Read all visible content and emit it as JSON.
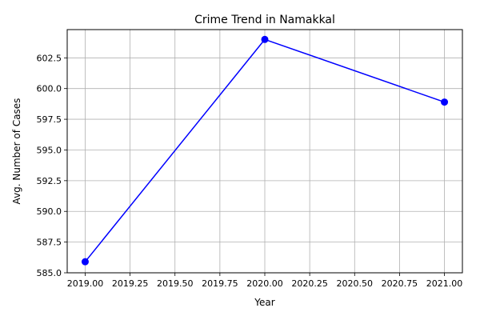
{
  "chart_data": {
    "type": "line",
    "title": "Crime Trend in Namakkal",
    "xlabel": "Year",
    "ylabel": "Avg. Number of Cases",
    "xlim": [
      2018.9,
      2021.1
    ],
    "ylim": [
      585.0,
      604.8
    ],
    "x_ticks": [
      2019.0,
      2019.25,
      2019.5,
      2019.75,
      2020.0,
      2020.25,
      2020.5,
      2020.75,
      2021.0
    ],
    "x_tick_labels": [
      "2019.00",
      "2019.25",
      "2019.50",
      "2019.75",
      "2020.00",
      "2020.25",
      "2020.50",
      "2020.75",
      "2021.00"
    ],
    "y_ticks": [
      585.0,
      587.5,
      590.0,
      592.5,
      595.0,
      597.5,
      600.0,
      602.5
    ],
    "y_tick_labels": [
      "585.0",
      "587.5",
      "590.0",
      "592.5",
      "595.0",
      "597.5",
      "600.0",
      "602.5"
    ],
    "grid": true,
    "series": [
      {
        "color": "#0000ff",
        "marker": "circle",
        "points": [
          {
            "x": 2019,
            "y": 585.9
          },
          {
            "x": 2020,
            "y": 604.0
          },
          {
            "x": 2021,
            "y": 598.9
          }
        ]
      }
    ]
  }
}
